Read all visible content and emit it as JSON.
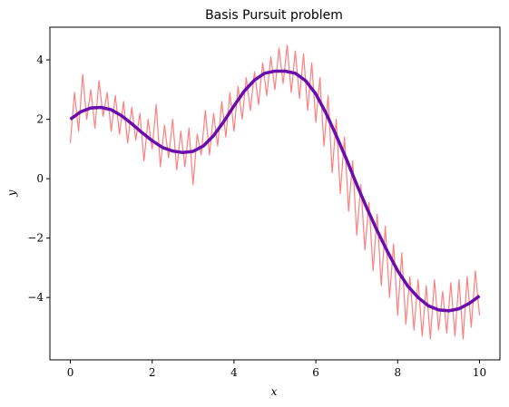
{
  "chart_data": {
    "type": "line",
    "title": "Basis Pursuit problem",
    "xlabel": "x",
    "ylabel": "y",
    "xlim": [
      -0.5,
      10.5
    ],
    "ylim": [
      -6.1,
      5.1
    ],
    "xticks": [
      0,
      2,
      4,
      6,
      8,
      10
    ],
    "yticks": [
      4,
      2,
      0,
      -2,
      -4
    ],
    "ytick_labels": [
      "4",
      "2",
      "0",
      "−2",
      "−4"
    ],
    "grid": false,
    "legend": "none",
    "series": [
      {
        "color": "#ff7f7f",
        "x": [
          0.0,
          0.1,
          0.2,
          0.3,
          0.4,
          0.5,
          0.6,
          0.7,
          0.8,
          0.9,
          1.0,
          1.1,
          1.2,
          1.3,
          1.4,
          1.5,
          1.6,
          1.7,
          1.8,
          1.9,
          2.0,
          2.1,
          2.2,
          2.3,
          2.4,
          2.5,
          2.6,
          2.7,
          2.8,
          2.9,
          3.0,
          3.1,
          3.2,
          3.3,
          3.4,
          3.5,
          3.6,
          3.7,
          3.8,
          3.9,
          4.0,
          4.1,
          4.2,
          4.3,
          4.4,
          4.5,
          4.6,
          4.7,
          4.8,
          4.9,
          5.0,
          5.1,
          5.2,
          5.3,
          5.4,
          5.5,
          5.6,
          5.7,
          5.8,
          5.9,
          6.0,
          6.1,
          6.2,
          6.3,
          6.4,
          6.5,
          6.6,
          6.7,
          6.8,
          6.9,
          7.0,
          7.1,
          7.2,
          7.3,
          7.4,
          7.5,
          7.6,
          7.7,
          7.8,
          7.9,
          8.0,
          8.1,
          8.2,
          8.3,
          8.4,
          8.5,
          8.6,
          8.7,
          8.8,
          8.9,
          9.0,
          9.1,
          9.2,
          9.3,
          9.4,
          9.5,
          9.6,
          9.7,
          9.8,
          9.9,
          10.0
        ],
        "y": [
          1.2,
          2.9,
          1.6,
          3.5,
          2.0,
          3.0,
          1.7,
          3.3,
          2.1,
          2.9,
          1.6,
          2.8,
          1.5,
          2.6,
          1.2,
          2.4,
          1.3,
          2.2,
          0.6,
          2.0,
          1.0,
          2.5,
          0.4,
          1.8,
          0.7,
          2.0,
          0.3,
          1.6,
          0.4,
          1.7,
          -0.2,
          1.5,
          0.8,
          2.3,
          0.8,
          2.2,
          1.1,
          2.6,
          1.4,
          2.9,
          1.6,
          3.1,
          2.0,
          3.4,
          2.3,
          3.6,
          2.5,
          3.9,
          2.8,
          4.1,
          3.0,
          4.4,
          3.2,
          4.5,
          2.9,
          4.3,
          2.7,
          4.2,
          2.3,
          3.9,
          1.9,
          3.4,
          1.1,
          2.8,
          0.2,
          2.0,
          -0.5,
          1.4,
          -1.1,
          0.6,
          -1.9,
          -0.2,
          -2.4,
          -0.8,
          -3.1,
          -1.2,
          -3.6,
          -1.6,
          -4.0,
          -2.2,
          -4.6,
          -2.5,
          -4.9,
          -3.3,
          -5.1,
          -3.4,
          -5.3,
          -3.6,
          -5.4,
          -3.4,
          -5.1,
          -3.8,
          -5.2,
          -3.5,
          -5.3,
          -3.4,
          -5.4,
          -3.3,
          -5.0,
          -3.1,
          -4.6
        ]
      },
      {
        "color": "#6a0dad",
        "x": [
          0.0,
          0.25,
          0.5,
          0.75,
          1.0,
          1.25,
          1.5,
          1.75,
          2.0,
          2.25,
          2.5,
          2.75,
          3.0,
          3.25,
          3.5,
          3.75,
          4.0,
          4.25,
          4.5,
          4.75,
          5.0,
          5.25,
          5.5,
          5.75,
          6.0,
          6.25,
          6.5,
          6.75,
          7.0,
          7.25,
          7.5,
          7.75,
          8.0,
          8.25,
          8.5,
          8.75,
          9.0,
          9.25,
          9.5,
          9.75,
          10.0
        ],
        "y": [
          2.0,
          2.25,
          2.38,
          2.4,
          2.32,
          2.12,
          1.85,
          1.55,
          1.28,
          1.05,
          0.93,
          0.88,
          0.92,
          1.1,
          1.45,
          1.92,
          2.45,
          2.95,
          3.32,
          3.55,
          3.62,
          3.62,
          3.55,
          3.3,
          2.85,
          2.2,
          1.45,
          0.65,
          -0.2,
          -1.0,
          -1.75,
          -2.45,
          -3.1,
          -3.62,
          -4.0,
          -4.28,
          -4.42,
          -4.45,
          -4.38,
          -4.2,
          -3.95
        ]
      }
    ]
  }
}
